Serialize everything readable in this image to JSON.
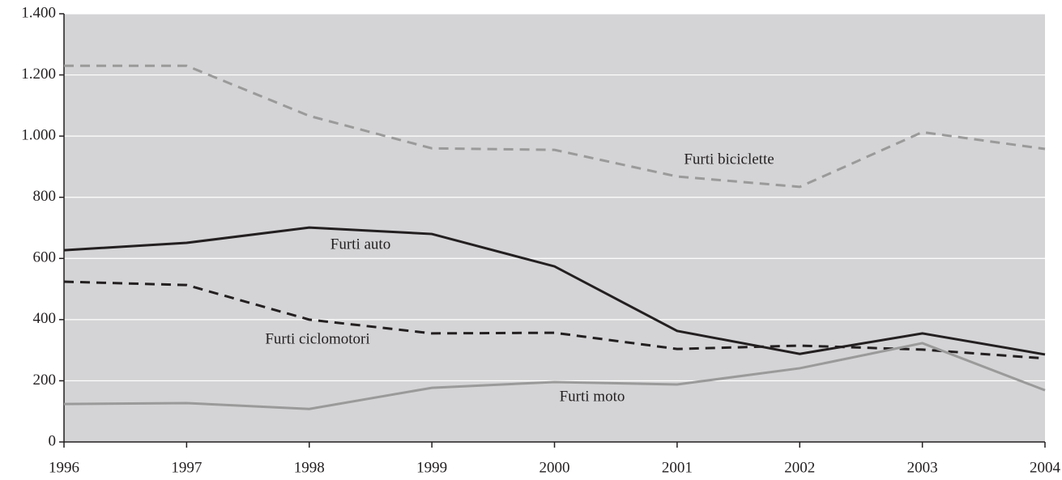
{
  "chart_data": {
    "type": "line",
    "x": [
      "1996",
      "1997",
      "1998",
      "1999",
      "2000",
      "2001",
      "2002",
      "2003",
      "2004"
    ],
    "series": [
      {
        "name": "Furti biciclette",
        "color": "#9a9a9a",
        "dash": true,
        "values": [
          1230,
          1230,
          1066,
          960,
          955,
          868,
          834,
          1013,
          958
        ]
      },
      {
        "name": "Furti auto",
        "color": "#231f20",
        "dash": false,
        "values": [
          627,
          651,
          701,
          680,
          574,
          363,
          288,
          355,
          286
        ]
      },
      {
        "name": "Furti ciclomotori",
        "color": "#231f20",
        "dash": true,
        "values": [
          524,
          513,
          400,
          355,
          357,
          304,
          315,
          302,
          273
        ]
      },
      {
        "name": "Furti moto",
        "color": "#9a9a9a",
        "dash": false,
        "values": [
          124,
          127,
          108,
          177,
          196,
          188,
          241,
          323,
          169
        ]
      }
    ],
    "ylim": [
      0,
      1400
    ],
    "yticks": [
      0,
      200,
      400,
      600,
      800,
      {
        "value": 1000,
        "label": "1.000"
      },
      {
        "value": 1200,
        "label": "1.200"
      },
      {
        "value": 1400,
        "label": "1.400"
      }
    ],
    "grid": true,
    "background": "#d4d4d6"
  }
}
